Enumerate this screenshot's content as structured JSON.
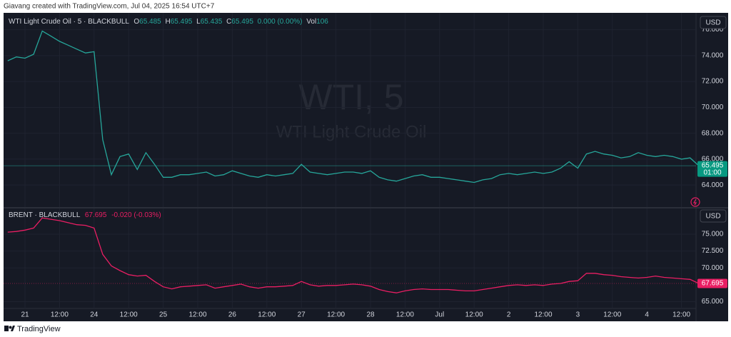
{
  "header": {
    "credit": "Giavang created with TradingView.com, Jul 04, 2025 16:54 UTC+7"
  },
  "footer": {
    "brand": "TradingView"
  },
  "chart_data": [
    {
      "type": "line",
      "title": "WTI Light Crude Oil · 5 · BLACKBULL",
      "watermark": "WTI, 5",
      "watermark_subtitle": "WTI Light Crude Oil",
      "ohlc_labels": [
        "O",
        "H",
        "L",
        "C"
      ],
      "ohlc": [
        65.485,
        65.495,
        65.435,
        65.495
      ],
      "change": "0.000 (0.00%)",
      "volume_label": "Vol",
      "volume": 106,
      "currency": "USD",
      "last_price": 65.495,
      "countdown": "01:00",
      "series": [
        {
          "name": "WTI Light Crude Oil",
          "color": "#26a69a",
          "values": [
            73.6,
            73.9,
            73.8,
            74.1,
            75.9,
            75.5,
            75.1,
            74.8,
            74.5,
            74.2,
            74.3,
            67.5,
            64.8,
            66.2,
            66.4,
            65.2,
            66.5,
            65.6,
            64.6,
            64.6,
            64.8,
            64.8,
            64.9,
            65.0,
            64.7,
            64.8,
            65.1,
            64.9,
            64.7,
            64.6,
            64.8,
            64.7,
            64.8,
            64.9,
            65.6,
            65.0,
            64.9,
            64.8,
            64.9,
            65.0,
            65.0,
            64.9,
            65.1,
            64.6,
            64.4,
            64.3,
            64.5,
            64.7,
            64.8,
            64.6,
            64.6,
            64.5,
            64.4,
            64.3,
            64.2,
            64.4,
            64.5,
            64.8,
            64.9,
            64.8,
            64.9,
            65.0,
            64.9,
            65.0,
            65.3,
            65.8,
            65.3,
            66.4,
            66.6,
            66.4,
            66.3,
            66.1,
            66.2,
            66.5,
            66.3,
            66.2,
            66.3,
            66.2,
            66.0,
            66.1,
            65.495
          ]
        }
      ],
      "xlim": [
        0,
        80
      ],
      "ylim": [
        62.3,
        77.3
      ],
      "yticks": [
        {
          "value": 64,
          "label": "64.000"
        },
        {
          "value": 66,
          "label": "66.000"
        },
        {
          "value": 68,
          "label": "68.000"
        },
        {
          "value": 70,
          "label": "70.000"
        },
        {
          "value": 72,
          "label": "72.000"
        },
        {
          "value": 74,
          "label": "74.000"
        },
        {
          "value": 76,
          "label": "76.000"
        }
      ],
      "grid": true
    },
    {
      "type": "line",
      "title": "BRENT · BLACKBULL",
      "change": "-0.020 (-0.03%)",
      "currency": "USD",
      "last_price": 67.695,
      "series": [
        {
          "name": "BRENT",
          "color": "#e91e63",
          "values": [
            75.3,
            75.4,
            75.6,
            75.9,
            77.4,
            77.2,
            77.0,
            76.7,
            76.4,
            76.3,
            75.9,
            72.0,
            70.3,
            69.6,
            69.0,
            68.8,
            68.9,
            68.0,
            67.2,
            66.9,
            67.2,
            67.3,
            67.4,
            67.5,
            67.0,
            67.2,
            67.4,
            67.6,
            67.2,
            67.0,
            67.2,
            67.2,
            67.3,
            67.4,
            68.0,
            67.5,
            67.3,
            67.4,
            67.4,
            67.5,
            67.6,
            67.5,
            67.3,
            66.8,
            66.5,
            66.3,
            66.6,
            66.8,
            66.9,
            66.8,
            66.8,
            66.8,
            66.7,
            66.6,
            66.6,
            66.8,
            67.0,
            67.2,
            67.4,
            67.5,
            67.4,
            67.5,
            67.4,
            67.6,
            67.7,
            68.0,
            68.1,
            69.2,
            69.2,
            69.0,
            68.9,
            68.7,
            68.6,
            68.5,
            68.6,
            68.8,
            68.6,
            68.5,
            68.4,
            68.3,
            67.695
          ]
        }
      ],
      "xlim": [
        0,
        80
      ],
      "xticks": [
        {
          "value": 2,
          "label": "21"
        },
        {
          "value": 6,
          "label": "12:00"
        },
        {
          "value": 10,
          "label": "24"
        },
        {
          "value": 14,
          "label": "12:00"
        },
        {
          "value": 18,
          "label": "25"
        },
        {
          "value": 22,
          "label": "12:00"
        },
        {
          "value": 26,
          "label": "26"
        },
        {
          "value": 30,
          "label": "12:00"
        },
        {
          "value": 34,
          "label": "27"
        },
        {
          "value": 38,
          "label": "12:00"
        },
        {
          "value": 42,
          "label": "28"
        },
        {
          "value": 46,
          "label": "12:00"
        },
        {
          "value": 50,
          "label": "Jul"
        },
        {
          "value": 54,
          "label": "12:00"
        },
        {
          "value": 58,
          "label": "2"
        },
        {
          "value": 62,
          "label": "12:00"
        },
        {
          "value": 66,
          "label": "3"
        },
        {
          "value": 70,
          "label": "12:00"
        },
        {
          "value": 74,
          "label": "4"
        },
        {
          "value": 78,
          "label": "12:00"
        }
      ],
      "ylim": [
        64,
        78.8
      ],
      "yticks": [
        {
          "value": 65,
          "label": "65.000"
        },
        {
          "value": 70,
          "label": "70.000"
        },
        {
          "value": 72.5,
          "label": "72.500"
        },
        {
          "value": 75,
          "label": "75.000"
        }
      ],
      "grid": true
    }
  ]
}
